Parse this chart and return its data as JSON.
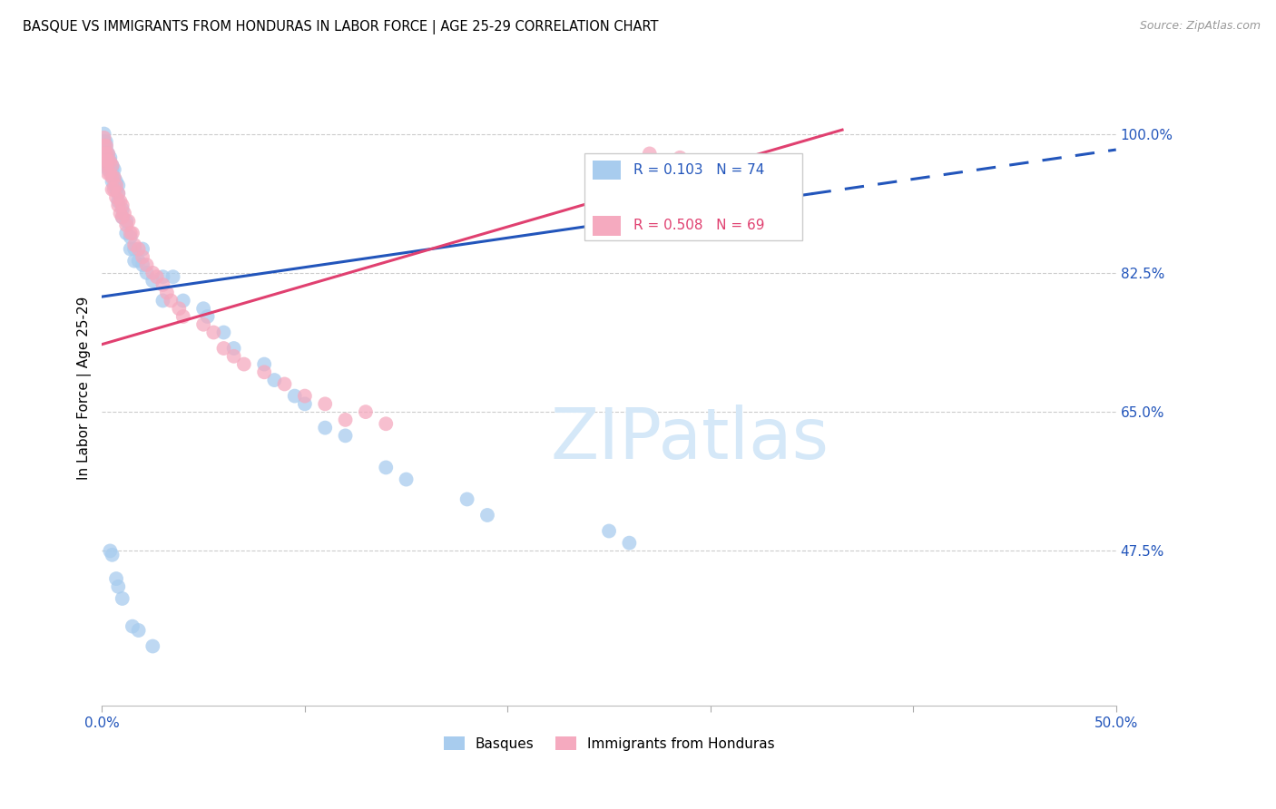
{
  "title": "BASQUE VS IMMIGRANTS FROM HONDURAS IN LABOR FORCE | AGE 25-29 CORRELATION CHART",
  "source": "Source: ZipAtlas.com",
  "ylabel": "In Labor Force | Age 25-29",
  "y_ticks_right": [
    0.475,
    0.65,
    0.825,
    1.0
  ],
  "y_tick_labels_right": [
    "47.5%",
    "65.0%",
    "82.5%",
    "100.0%"
  ],
  "xlim": [
    0.0,
    0.5
  ],
  "ylim": [
    0.28,
    1.08
  ],
  "blue_r": 0.103,
  "blue_n": 74,
  "pink_r": 0.508,
  "pink_n": 69,
  "blue_color": "#A8CCEE",
  "pink_color": "#F5AABF",
  "blue_line_color": "#2255BB",
  "pink_line_color": "#E04070",
  "watermark_color": "#d5e8f8",
  "blue_trendline": [
    0.0,
    0.5,
    0.795,
    0.98
  ],
  "pink_trendline": [
    0.0,
    0.365,
    0.735,
    1.005
  ],
  "blue_scatter_x": [
    0.001,
    0.001,
    0.001,
    0.001,
    0.001,
    0.001,
    0.001,
    0.001,
    0.001,
    0.001,
    0.002,
    0.002,
    0.002,
    0.002,
    0.002,
    0.002,
    0.003,
    0.003,
    0.003,
    0.003,
    0.003,
    0.004,
    0.004,
    0.004,
    0.004,
    0.005,
    0.005,
    0.005,
    0.006,
    0.006,
    0.006,
    0.007,
    0.007,
    0.008,
    0.008,
    0.008,
    0.01,
    0.01,
    0.012,
    0.012,
    0.014,
    0.014,
    0.016,
    0.016,
    0.018,
    0.02,
    0.02,
    0.022,
    0.025,
    0.03,
    0.03,
    0.035,
    0.04,
    0.05,
    0.052,
    0.06,
    0.065,
    0.08,
    0.085,
    0.095,
    0.1,
    0.11,
    0.12,
    0.14,
    0.15,
    0.18,
    0.19,
    0.25,
    0.26
  ],
  "blue_scatter_y": [
    1.0,
    0.99,
    0.99,
    0.99,
    0.99,
    0.99,
    0.99,
    0.985,
    0.98,
    0.975,
    0.99,
    0.985,
    0.98,
    0.975,
    0.97,
    0.965,
    0.975,
    0.97,
    0.965,
    0.96,
    0.955,
    0.97,
    0.965,
    0.96,
    0.955,
    0.96,
    0.955,
    0.94,
    0.955,
    0.945,
    0.935,
    0.94,
    0.93,
    0.935,
    0.925,
    0.915,
    0.905,
    0.895,
    0.89,
    0.875,
    0.87,
    0.855,
    0.855,
    0.84,
    0.84,
    0.855,
    0.835,
    0.825,
    0.815,
    0.82,
    0.79,
    0.82,
    0.79,
    0.78,
    0.77,
    0.75,
    0.73,
    0.71,
    0.69,
    0.67,
    0.66,
    0.63,
    0.62,
    0.58,
    0.565,
    0.54,
    0.52,
    0.5,
    0.485
  ],
  "blue_scatter_y_low": [
    0.475,
    0.47,
    0.44,
    0.43,
    0.415,
    0.38,
    0.375,
    0.355
  ],
  "blue_scatter_x_low": [
    0.004,
    0.005,
    0.007,
    0.008,
    0.01,
    0.015,
    0.018,
    0.025
  ],
  "pink_scatter_x": [
    0.001,
    0.001,
    0.001,
    0.001,
    0.002,
    0.002,
    0.002,
    0.003,
    0.003,
    0.003,
    0.004,
    0.004,
    0.005,
    0.005,
    0.005,
    0.006,
    0.006,
    0.007,
    0.007,
    0.008,
    0.008,
    0.009,
    0.009,
    0.01,
    0.01,
    0.011,
    0.012,
    0.013,
    0.014,
    0.015,
    0.016,
    0.018,
    0.02,
    0.022,
    0.025,
    0.027,
    0.03,
    0.032,
    0.034,
    0.038,
    0.04,
    0.05,
    0.055,
    0.06,
    0.065,
    0.07,
    0.08,
    0.09,
    0.1,
    0.11,
    0.12,
    0.13,
    0.14,
    0.27,
    0.285,
    0.3,
    0.315
  ],
  "pink_scatter_y": [
    0.995,
    0.985,
    0.975,
    0.965,
    0.985,
    0.975,
    0.96,
    0.975,
    0.965,
    0.95,
    0.965,
    0.95,
    0.96,
    0.945,
    0.93,
    0.945,
    0.93,
    0.935,
    0.92,
    0.925,
    0.91,
    0.915,
    0.9,
    0.91,
    0.895,
    0.9,
    0.885,
    0.89,
    0.875,
    0.875,
    0.86,
    0.855,
    0.845,
    0.835,
    0.825,
    0.82,
    0.81,
    0.8,
    0.79,
    0.78,
    0.77,
    0.76,
    0.75,
    0.73,
    0.72,
    0.71,
    0.7,
    0.685,
    0.67,
    0.66,
    0.64,
    0.65,
    0.635,
    0.975,
    0.97,
    0.96,
    0.955
  ]
}
